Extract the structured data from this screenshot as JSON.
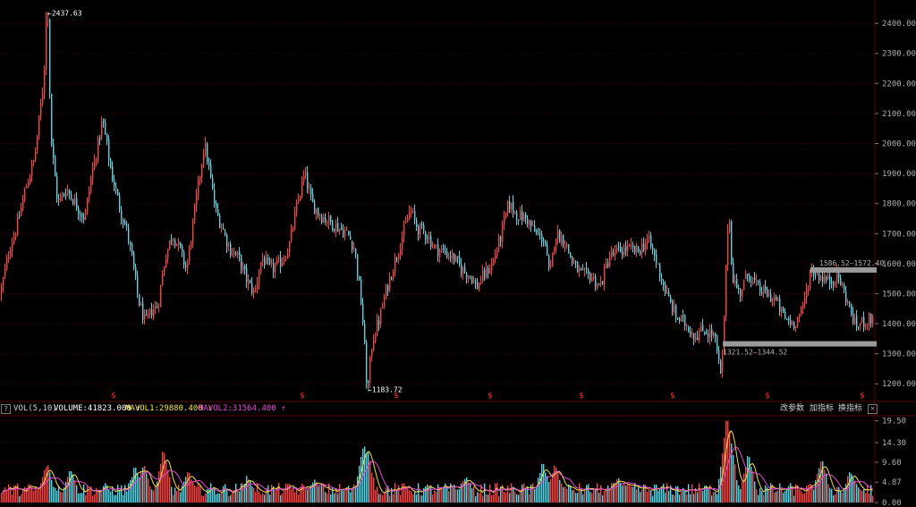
{
  "indicator_bar": {
    "help": "?",
    "name": "VOL(5,10)",
    "volume": "VOLUME:41823.000 ↑",
    "mavol1": "MAVOL1:29880.400 ↓",
    "mavol2": "MAVOL2:31564.400 ↑",
    "controls": [
      "改参数",
      "加指标",
      "换指标"
    ],
    "close": "✕"
  },
  "colors": {
    "up": "#ff4040",
    "down": "#4fd8e8",
    "grid": "#3a0000",
    "axis_text": "#b0b0b0",
    "mavol1": "#f2e14a",
    "mavol2": "#e44bd9",
    "marker": "#ff3030"
  },
  "chart_data": [
    {
      "type": "candlestick",
      "ylim": [
        1150,
        2460
      ],
      "yticks": [
        "1200.00",
        "1300.00",
        "1400.00",
        "1500.00",
        "1600.00",
        "1700.00",
        "1800.00",
        "1900.00",
        "2000.00",
        "2100.00",
        "2200.00",
        "2300.00",
        "2400.00"
      ],
      "ytick_values": [
        1200,
        1300,
        1400,
        1500,
        1600,
        1700,
        1800,
        1900,
        2000,
        2100,
        2200,
        2300,
        2400
      ],
      "anchors": [
        [
          0,
          1500
        ],
        [
          10,
          1650
        ],
        [
          18,
          1720
        ],
        [
          28,
          1850
        ],
        [
          38,
          1950
        ],
        [
          48,
          2200
        ],
        [
          52,
          2437.63
        ],
        [
          57,
          2000
        ],
        [
          64,
          1800
        ],
        [
          74,
          1850
        ],
        [
          84,
          1800
        ],
        [
          94,
          1750
        ],
        [
          102,
          1900
        ],
        [
          108,
          1980
        ],
        [
          114,
          2080
        ],
        [
          124,
          1900
        ],
        [
          134,
          1780
        ],
        [
          142,
          1700
        ],
        [
          148,
          1600
        ],
        [
          154,
          1480
        ],
        [
          162,
          1400
        ],
        [
          168,
          1440
        ],
        [
          176,
          1460
        ],
        [
          184,
          1620
        ],
        [
          192,
          1700
        ],
        [
          200,
          1650
        ],
        [
          208,
          1580
        ],
        [
          216,
          1750
        ],
        [
          222,
          1880
        ],
        [
          228,
          2000
        ],
        [
          234,
          1900
        ],
        [
          240,
          1780
        ],
        [
          248,
          1720
        ],
        [
          256,
          1650
        ],
        [
          266,
          1620
        ],
        [
          276,
          1540
        ],
        [
          284,
          1500
        ],
        [
          292,
          1620
        ],
        [
          302,
          1580
        ],
        [
          312,
          1600
        ],
        [
          322,
          1650
        ],
        [
          332,
          1800
        ],
        [
          340,
          1900
        ],
        [
          348,
          1800
        ],
        [
          358,
          1760
        ],
        [
          368,
          1740
        ],
        [
          378,
          1720
        ],
        [
          388,
          1700
        ],
        [
          396,
          1650
        ],
        [
          404,
          1450
        ],
        [
          410,
          1183.72
        ],
        [
          416,
          1350
        ],
        [
          424,
          1420
        ],
        [
          432,
          1520
        ],
        [
          440,
          1600
        ],
        [
          448,
          1680
        ],
        [
          458,
          1780
        ],
        [
          466,
          1720
        ],
        [
          476,
          1700
        ],
        [
          486,
          1650
        ],
        [
          496,
          1640
        ],
        [
          506,
          1620
        ],
        [
          516,
          1580
        ],
        [
          526,
          1560
        ],
        [
          532,
          1520
        ],
        [
          540,
          1560
        ],
        [
          550,
          1600
        ],
        [
          560,
          1700
        ],
        [
          568,
          1800
        ],
        [
          578,
          1760
        ],
        [
          588,
          1750
        ],
        [
          598,
          1700
        ],
        [
          608,
          1680
        ],
        [
          614,
          1550
        ],
        [
          620,
          1700
        ],
        [
          630,
          1680
        ],
        [
          640,
          1600
        ],
        [
          650,
          1560
        ],
        [
          660,
          1560
        ],
        [
          670,
          1520
        ],
        [
          680,
          1620
        ],
        [
          690,
          1640
        ],
        [
          700,
          1650
        ],
        [
          712,
          1640
        ],
        [
          724,
          1680
        ],
        [
          734,
          1600
        ],
        [
          744,
          1500
        ],
        [
          756,
          1420
        ],
        [
          766,
          1400
        ],
        [
          776,
          1360
        ],
        [
          786,
          1380
        ],
        [
          798,
          1360
        ],
        [
          806,
          1210
        ],
        [
          810,
          1500
        ],
        [
          814,
          1800
        ],
        [
          818,
          1560
        ],
        [
          826,
          1500
        ],
        [
          836,
          1570
        ],
        [
          846,
          1520
        ],
        [
          856,
          1500
        ],
        [
          866,
          1480
        ],
        [
          876,
          1420
        ],
        [
          886,
          1400
        ],
        [
          896,
          1440
        ],
        [
          906,
          1580
        ],
        [
          916,
          1560
        ],
        [
          926,
          1540
        ],
        [
          936,
          1560
        ],
        [
          946,
          1480
        ],
        [
          956,
          1390
        ],
        [
          966,
          1410
        ],
        [
          978,
          1420
        ]
      ],
      "annotations": [
        {
          "text": "←2437.63",
          "x": 52,
          "value": 2437.63
        },
        {
          "text": "←1183.72",
          "x": 410,
          "value": 1183.72
        },
        {
          "text": "1586.52—1572.40",
          "x1": 906,
          "x2": 980,
          "value": 1579
        },
        {
          "text": "1321.52—1344.52",
          "x1": 808,
          "x2": 980,
          "value": 1333
        }
      ],
      "markers": {
        "symbol": "$",
        "x": [
          127,
          338,
          443,
          548,
          650,
          752,
          858,
          964
        ]
      }
    },
    {
      "type": "bar",
      "title": "VOL(5,10)",
      "ylim": [
        0,
        20.5
      ],
      "yticks": [
        "19.50",
        "14.30",
        "9.60",
        "4.87",
        "0.00"
      ],
      "ytick_values": [
        19.5,
        14.3,
        9.6,
        4.87,
        0
      ],
      "spikes": [
        [
          52,
          9
        ],
        [
          78,
          8
        ],
        [
          150,
          8
        ],
        [
          160,
          9
        ],
        [
          182,
          12
        ],
        [
          210,
          7
        ],
        [
          276,
          6
        ],
        [
          350,
          5
        ],
        [
          406,
          14
        ],
        [
          410,
          12
        ],
        [
          520,
          6
        ],
        [
          606,
          9
        ],
        [
          620,
          9
        ],
        [
          690,
          6
        ],
        [
          812,
          19.5
        ],
        [
          815,
          16
        ],
        [
          836,
          11
        ],
        [
          918,
          10
        ],
        [
          950,
          7
        ]
      ]
    }
  ]
}
